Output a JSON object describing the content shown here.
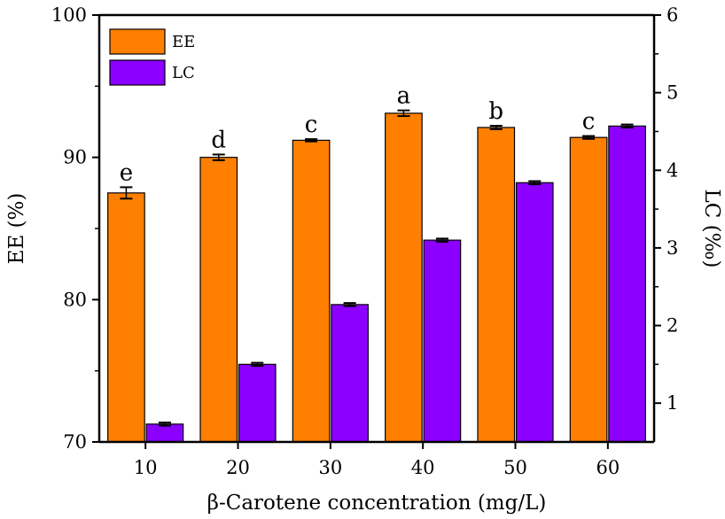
{
  "chart_data": {
    "type": "bar",
    "title": "",
    "xlabel": "β-Carotene concentration (mg/L)",
    "ylabel": "EE (%)",
    "y2label": "LC (‰)",
    "categories": [
      "10",
      "20",
      "30",
      "40",
      "50",
      "60"
    ],
    "ylim": [
      70,
      100
    ],
    "y2lim": [
      0.5,
      6
    ],
    "yticks": [
      "70",
      "80",
      "90",
      "100"
    ],
    "y2ticks": [
      "1",
      "2",
      "3",
      "4",
      "5",
      "6"
    ],
    "legend_position": "top-left",
    "series": [
      {
        "name": "EE",
        "axis": "left",
        "color": "#FF7F00",
        "values": [
          87.5,
          90.0,
          91.2,
          93.1,
          92.1,
          91.4
        ],
        "errors": [
          0.4,
          0.2,
          0.08,
          0.2,
          0.12,
          0.1
        ],
        "labels": [
          "e",
          "d",
          "c",
          "a",
          "b",
          "c"
        ]
      },
      {
        "name": "LC",
        "axis": "right",
        "color": "#8B00FF",
        "values": [
          0.73,
          1.5,
          2.27,
          3.1,
          3.84,
          4.57
        ],
        "errors": [
          0.02,
          0.02,
          0.02,
          0.02,
          0.02,
          0.02
        ]
      }
    ]
  }
}
